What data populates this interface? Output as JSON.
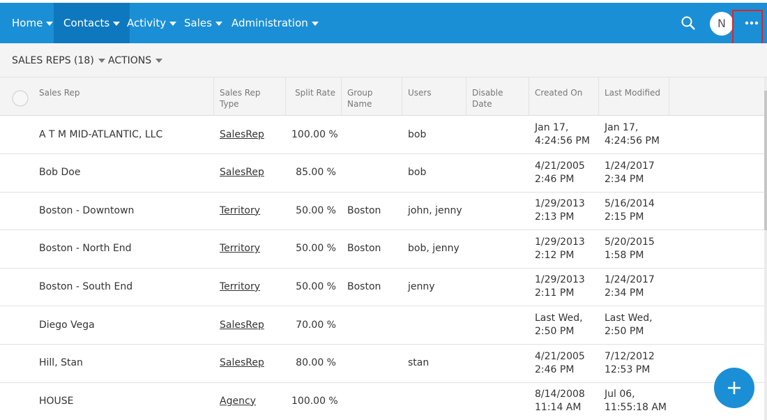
{
  "nav": {
    "items": [
      "Home",
      "Contacts",
      "Activity",
      "Sales",
      "Administration"
    ],
    "avatar": "N"
  },
  "toolbar": {
    "view": "SALES REPS (18)",
    "actions": "ACTIONS"
  },
  "table": {
    "columns": [
      "Sales Rep",
      "Sales Rep Type",
      "Split Rate",
      "Group Name",
      "Users",
      "Disable Date",
      "Created On",
      "Last Modified"
    ],
    "rows": [
      [
        "A T M MID-ATLANTIC, LLC",
        "SalesRep",
        "100.00 %",
        "",
        "bob",
        "",
        [
          "Jan 17,",
          "4:24:56 PM"
        ],
        [
          "Jan 17,",
          "4:24:56 PM"
        ]
      ],
      [
        "Bob Doe",
        "SalesRep",
        "85.00 %",
        "",
        "bob",
        "",
        [
          "4/21/2005",
          "2:46 PM"
        ],
        [
          "1/24/2017",
          "2:34 PM"
        ]
      ],
      [
        "Boston - Downtown",
        "Territory",
        "50.00 %",
        "Boston",
        "john, jenny",
        "",
        [
          "1/29/2013",
          "2:13 PM"
        ],
        [
          "5/16/2014",
          "2:15 PM"
        ]
      ],
      [
        "Boston - North End",
        "Territory",
        "50.00 %",
        "Boston",
        "bob, jenny",
        "",
        [
          "1/29/2013",
          "2:12 PM"
        ],
        [
          "5/20/2015",
          "1:58 PM"
        ]
      ],
      [
        "Boston - South End",
        "Territory",
        "50.00 %",
        "Boston",
        "jenny",
        "",
        [
          "1/29/2013",
          "2:11 PM"
        ],
        [
          "1/24/2017",
          "2:34 PM"
        ]
      ],
      [
        "Diego Vega",
        "SalesRep",
        "70.00 %",
        "",
        "",
        "",
        [
          "Last Wed,",
          "2:50 PM"
        ],
        [
          "Last Wed,",
          "2:50 PM"
        ]
      ],
      [
        "Hill, Stan",
        "SalesRep",
        "80.00 %",
        "",
        "stan",
        "",
        [
          "4/21/2005",
          "2:46 PM"
        ],
        [
          "7/12/2012",
          "12:53 PM"
        ]
      ],
      [
        "HOUSE",
        "Agency",
        "100.00 %",
        "",
        "",
        "",
        [
          "8/14/2008",
          "11:14 AM"
        ],
        [
          "Jul 06,",
          "11:55:18 AM"
        ]
      ]
    ]
  }
}
